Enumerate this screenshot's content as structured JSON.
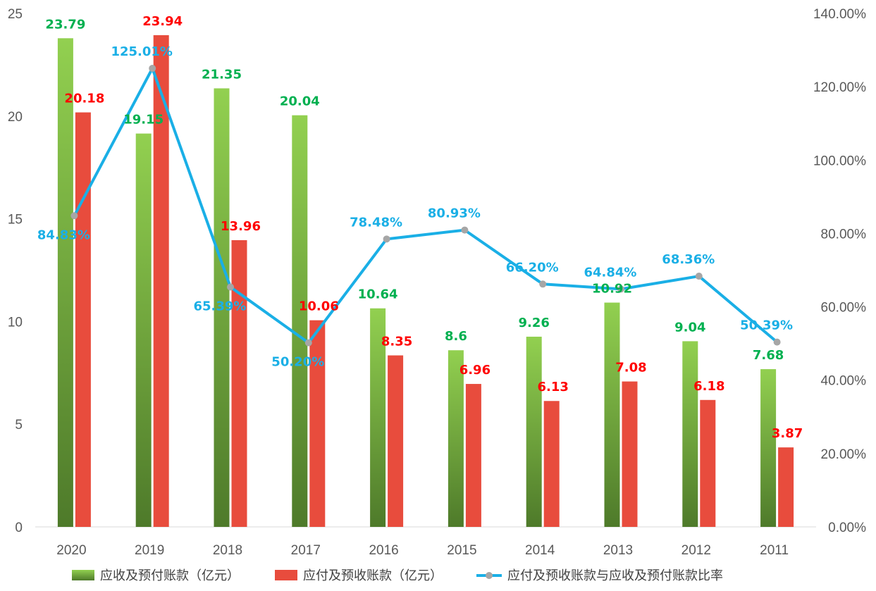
{
  "chart_data": {
    "type": "bar",
    "categories": [
      "2020",
      "2019",
      "2018",
      "2017",
      "2016",
      "2015",
      "2014",
      "2013",
      "2012",
      "2011"
    ],
    "series": [
      {
        "name": "应收及预付账款（亿元）",
        "type": "bar",
        "axis": "left",
        "color": "#92d050",
        "color_dark": "#4e7a2a",
        "label_color": "#00b050",
        "values": [
          23.79,
          19.15,
          21.35,
          20.04,
          10.64,
          8.6,
          9.26,
          10.92,
          9.04,
          7.68
        ],
        "labels": [
          "23.79",
          "19.15",
          "21.35",
          "20.04",
          "10.64",
          "8.6",
          "9.26",
          "10.92",
          "9.04",
          "7.68"
        ]
      },
      {
        "name": "应付及预收账款（亿元）",
        "type": "bar",
        "axis": "left",
        "color": "#e84c3d",
        "label_color": "#ff0000",
        "values": [
          20.18,
          23.94,
          13.96,
          10.06,
          8.35,
          6.96,
          6.13,
          7.08,
          6.18,
          3.87
        ],
        "labels": [
          "20.18",
          "23.94",
          "13.96",
          "10.06",
          "8.35",
          "6.96",
          "6.13",
          "7.08",
          "6.18",
          "3.87"
        ]
      },
      {
        "name": "应付及预收账款与应收及预付账款比率",
        "type": "line",
        "axis": "right",
        "color": "#1aafe6",
        "marker_color": "#a6a6a6",
        "label_color": "#1aafe6",
        "values": [
          84.83,
          125.01,
          65.39,
          50.2,
          78.48,
          80.93,
          66.2,
          64.84,
          68.36,
          50.39
        ],
        "labels": [
          "84.83%",
          "125.01%",
          "65.39%",
          "50.20%",
          "78.48%",
          "80.93%",
          "66.20%",
          "64.84%",
          "68.36%",
          "50.39%"
        ]
      }
    ],
    "y_left": {
      "min": 0,
      "max": 25,
      "ticks": [
        "0",
        "5",
        "10",
        "15",
        "20",
        "25"
      ]
    },
    "y_right": {
      "min": 0,
      "max": 140,
      "ticks": [
        "0.00%",
        "20.00%",
        "40.00%",
        "60.00%",
        "80.00%",
        "100.00%",
        "120.00%",
        "140.00%"
      ]
    },
    "grid": false,
    "legend_position": "bottom"
  }
}
